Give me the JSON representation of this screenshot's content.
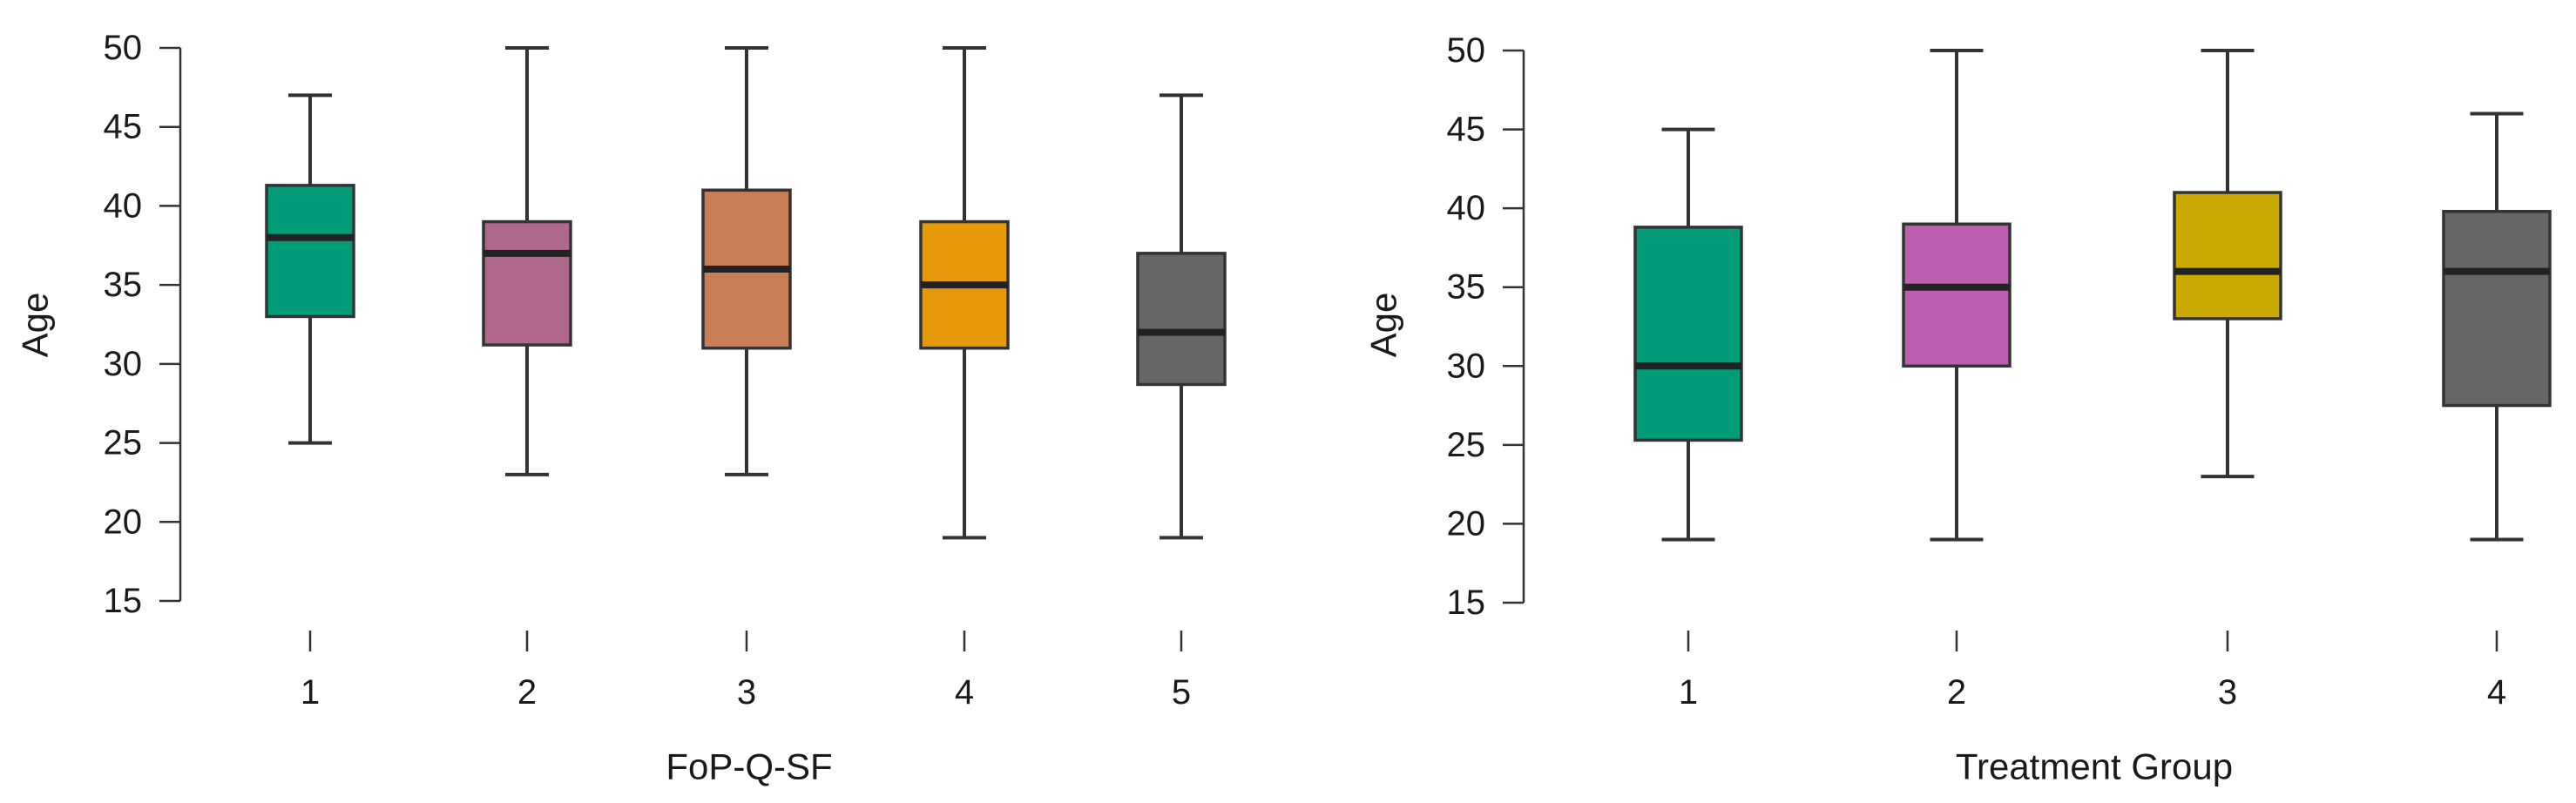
{
  "chart_data": [
    {
      "type": "boxplot",
      "xlabel": "FoP-Q-SF",
      "ylabel": "Age",
      "ylim": [
        15,
        50
      ],
      "yticks": [
        15,
        20,
        25,
        30,
        35,
        40,
        45,
        50
      ],
      "grid": false,
      "categories": [
        "1",
        "2",
        "3",
        "4",
        "5"
      ],
      "boxes": [
        {
          "min": 25,
          "q1": 33,
          "median": 38,
          "q3": 41.3,
          "max": 47,
          "color": "#009B77"
        },
        {
          "min": 23,
          "q1": 31.2,
          "median": 37,
          "q3": 39,
          "max": 50,
          "color": "#B0698D"
        },
        {
          "min": 23,
          "q1": 31,
          "median": 36,
          "q3": 41,
          "max": 50,
          "color": "#C97D56"
        },
        {
          "min": 19,
          "q1": 31,
          "median": 35,
          "q3": 39,
          "max": 50,
          "color": "#E69A0B"
        },
        {
          "min": 19,
          "q1": 28.7,
          "median": 32,
          "q3": 37,
          "max": 47,
          "color": "#666666"
        }
      ]
    },
    {
      "type": "boxplot",
      "xlabel": "Treatment Group",
      "ylabel": "Age",
      "ylim": [
        15,
        50
      ],
      "yticks": [
        15,
        20,
        25,
        30,
        35,
        40,
        45,
        50
      ],
      "grid": false,
      "categories": [
        "1",
        "2",
        "3",
        "4"
      ],
      "boxes": [
        {
          "min": 19,
          "q1": 25.3,
          "median": 30,
          "q3": 38.8,
          "max": 45,
          "color": "#009B77"
        },
        {
          "min": 19,
          "q1": 30,
          "median": 35,
          "q3": 39,
          "max": 50,
          "color": "#BD5EB1"
        },
        {
          "min": 23,
          "q1": 33,
          "median": 36,
          "q3": 41,
          "max": 50,
          "color": "#CBAA00"
        },
        {
          "min": 19,
          "q1": 27.5,
          "median": 36,
          "q3": 39.8,
          "max": 46,
          "color": "#666666"
        }
      ]
    }
  ]
}
